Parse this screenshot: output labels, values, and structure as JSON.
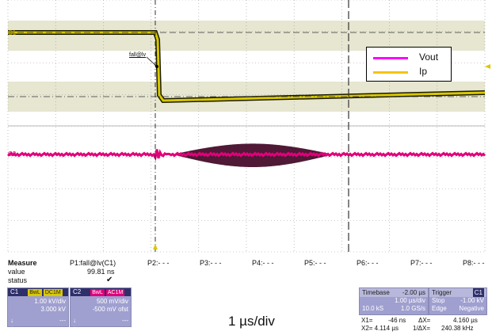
{
  "plot": {
    "ch1_label": "C1",
    "ch2_label": "C2",
    "marker_label": "fall@lv",
    "legend": [
      {
        "name": "Vout",
        "color": "#ff00ff"
      },
      {
        "name": "Ip",
        "color": "#f5c400"
      }
    ],
    "colors": {
      "ch1": "#d9c800",
      "ch1_outline": "#1a1a00",
      "ch2": "#e0007a",
      "ch2_dark": "#3d0020",
      "grid": "#999999",
      "band": "#d8d8b8"
    }
  },
  "measure": {
    "title": "Measure",
    "rows": [
      "value",
      "status"
    ],
    "params": [
      {
        "name": "P1:fall@lv(C1)",
        "value": "99.81 ns",
        "status": "✔"
      },
      {
        "name": "P2:- - -",
        "value": "",
        "status": ""
      },
      {
        "name": "P3:- - -",
        "value": "",
        "status": ""
      },
      {
        "name": "P4:- - -",
        "value": "",
        "status": ""
      },
      {
        "name": "P5:- - -",
        "value": "",
        "status": ""
      },
      {
        "name": "P6:- - -",
        "value": "",
        "status": ""
      },
      {
        "name": "P7:- - -",
        "value": "",
        "status": ""
      },
      {
        "name": "P8:- - -",
        "value": "",
        "status": ""
      }
    ]
  },
  "channels": [
    {
      "name": "C1",
      "tag1": "BwL",
      "tag2": "DC1M",
      "scale": "1.00 kV/div",
      "offset": "3.000 kV",
      "t1": "↓",
      "t2": "↑",
      "v1": "---",
      "v2": "---",
      "color": "#d9c800"
    },
    {
      "name": "C2",
      "tag1": "BwL",
      "tag2": "AC1M",
      "scale": "500 mV/div",
      "offset": "-500 mV ofst",
      "t1": "↓",
      "t2": "↑",
      "v1": "---",
      "v2": "---",
      "color": "#e0007a"
    }
  ],
  "timebase": {
    "label": "Timebase",
    "delay": "-2.00 µs",
    "per_div": "1.00 µs/div",
    "samples": "10.0 kS",
    "rate": "1.0 GS/s"
  },
  "trigger": {
    "label": "Trigger",
    "source": "C1",
    "mode": "Stop",
    "level": "-1.00 kV",
    "type": "Edge",
    "slope": "Negative"
  },
  "cursors": {
    "x1": "X1=",
    "x1_val": "-46 ns",
    "dx": "ΔX=",
    "dx_val": "4.160 µs",
    "x2": "X2= 4.114 µs",
    "inv": "1/ΔX=",
    "inv_val": "240.38 kHz"
  },
  "caption": "1 µs/div"
}
